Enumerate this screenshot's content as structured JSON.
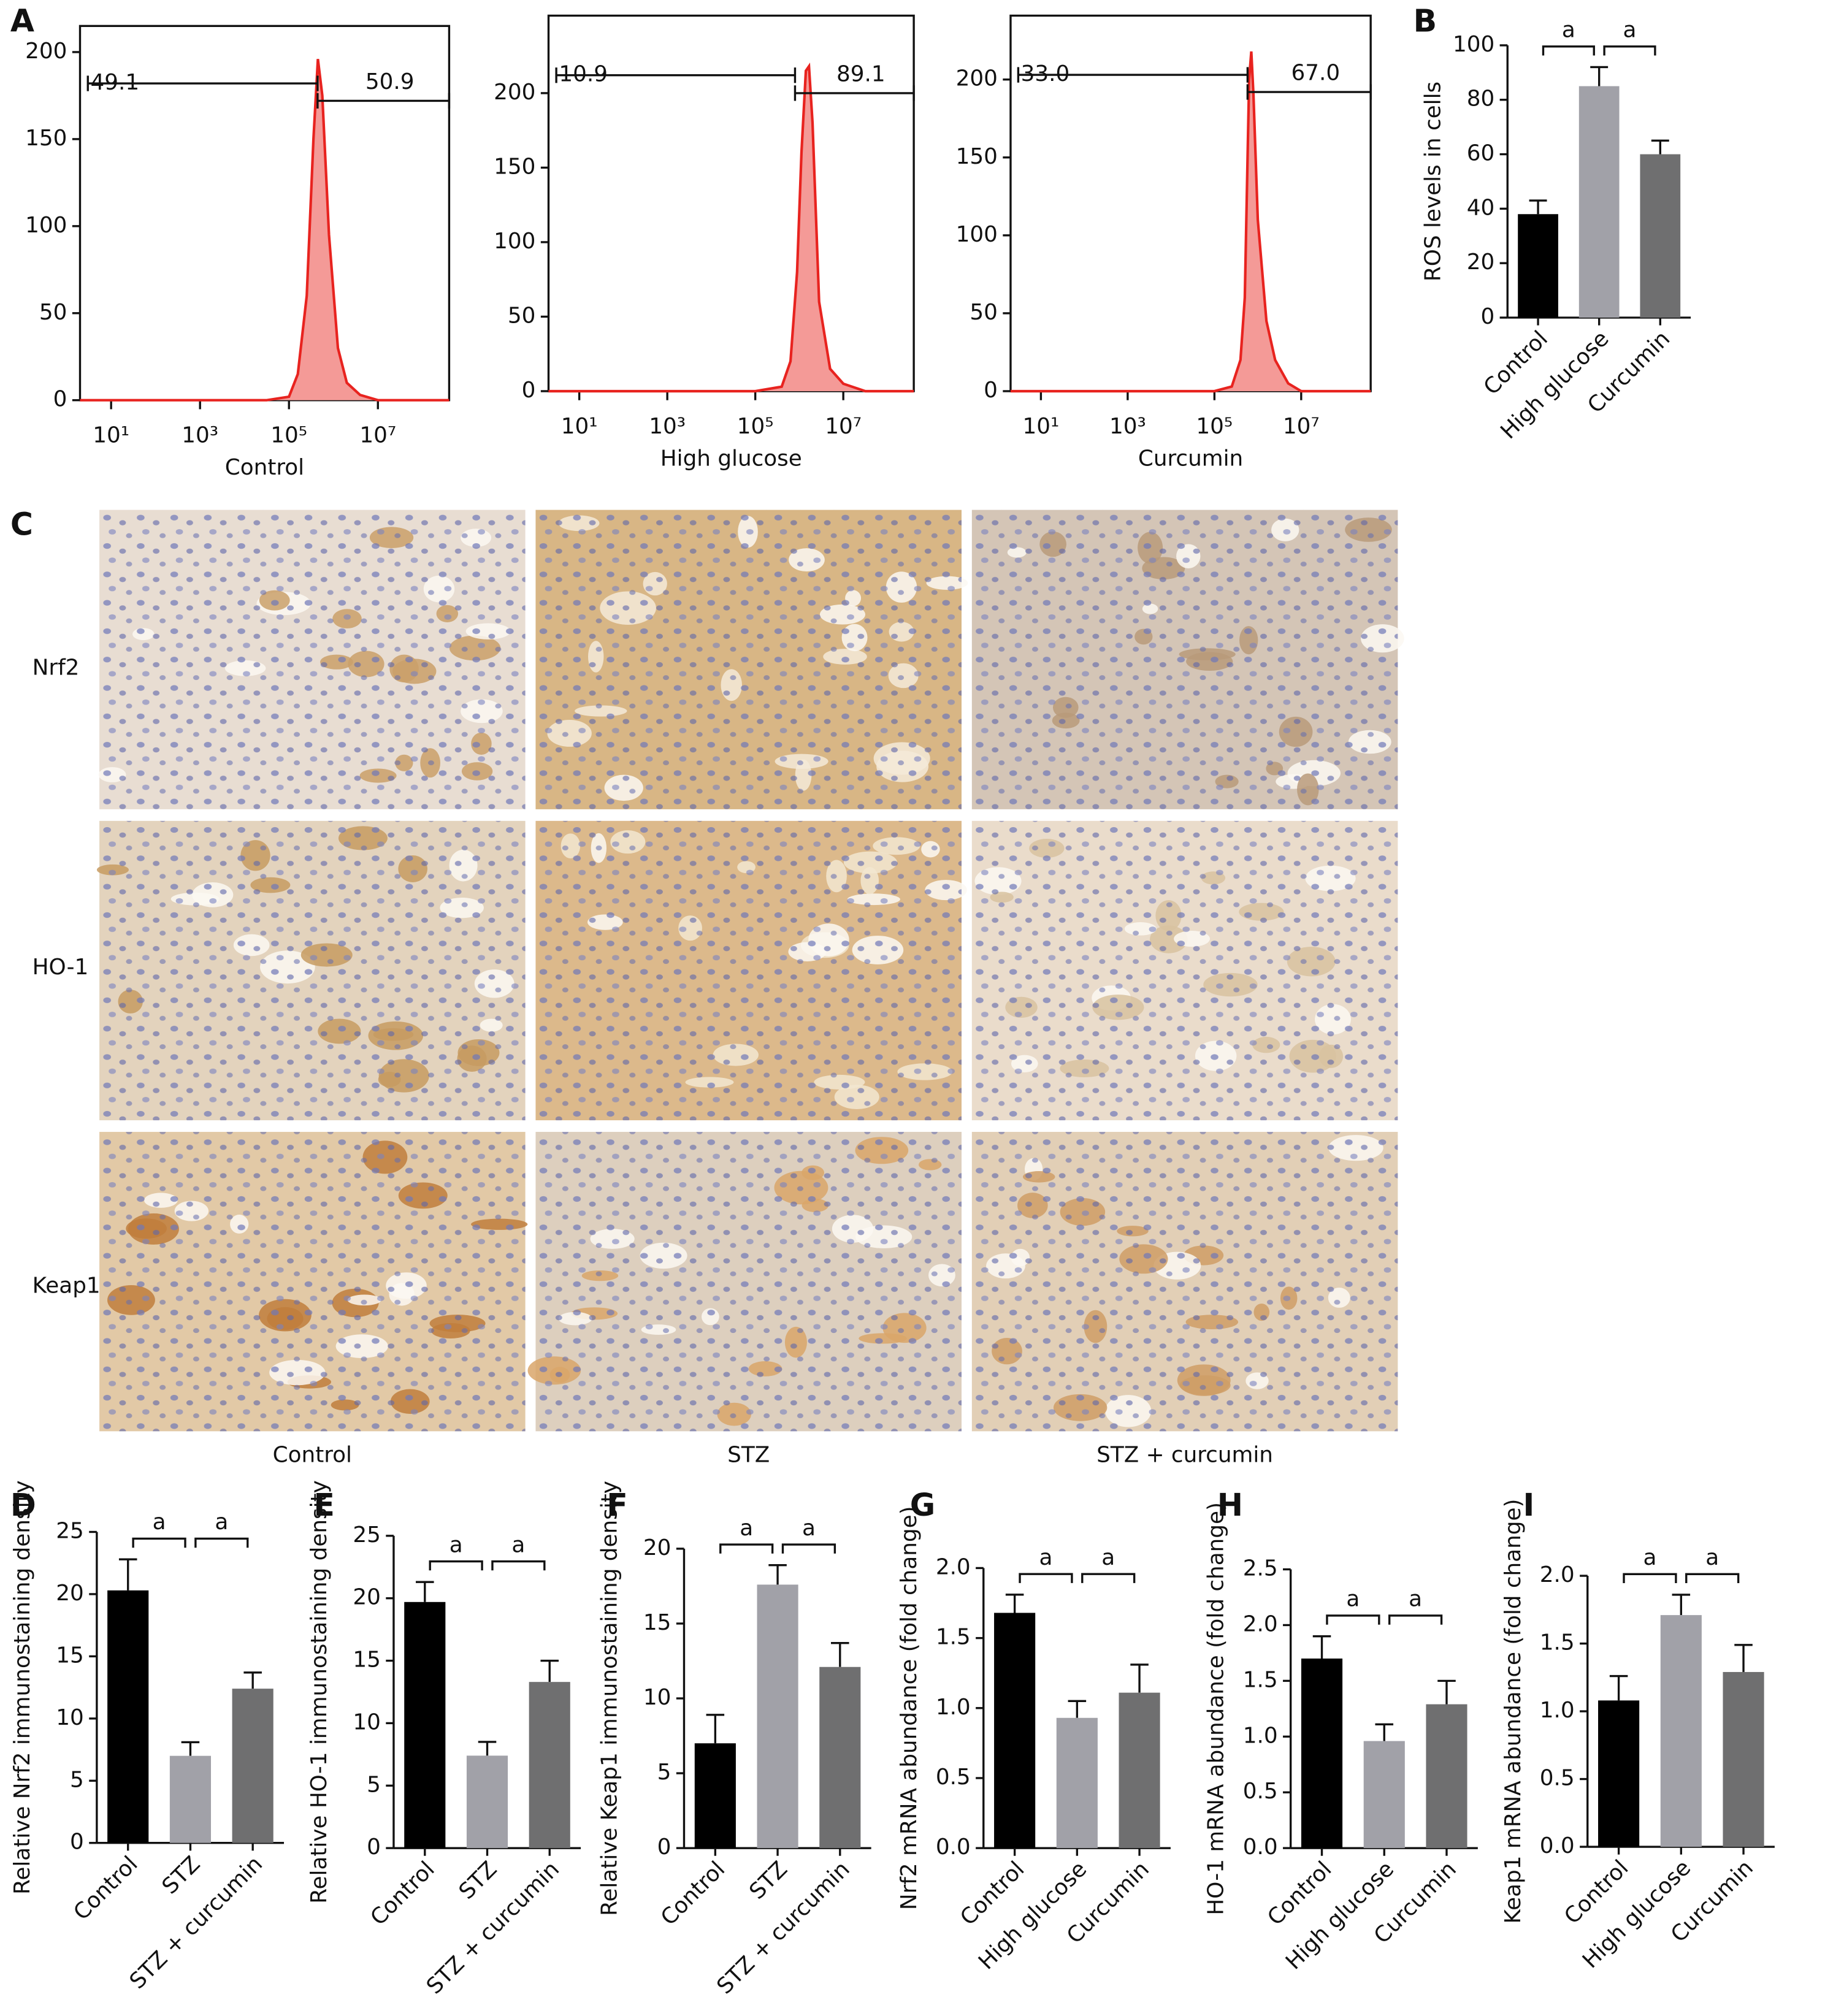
{
  "panel_labels": [
    "A",
    "B",
    "C",
    "D",
    "E",
    "F",
    "G",
    "H",
    "I"
  ],
  "panel_c": {
    "row_labels": [
      "Nrf2",
      "HO-1",
      "Keap1"
    ],
    "column_labels": [
      "Control",
      "STZ",
      "STZ + curcumin"
    ]
  },
  "chart_data": [
    {
      "type": "area",
      "xlabel": "Control",
      "log_x": true,
      "xlim": [
        2,
        400000000.0
      ],
      "ylim": [
        0,
        215
      ],
      "xticks": [
        {
          "value": 10,
          "label": "10¹"
        },
        {
          "value": 1000,
          "label": "10³"
        },
        {
          "value": 100000,
          "label": "10⁵"
        },
        {
          "value": 10000000,
          "label": "10⁷"
        }
      ],
      "yticks": [
        0,
        50,
        100,
        150,
        200
      ],
      "color": "#e8231f",
      "fill": "#f49a97",
      "x": [
        2,
        31600.0,
        100000.0,
        158000.0,
        251000.0,
        355000.0,
        447000.0,
        562000.0,
        794000.0,
        1260000.0,
        2000000.0,
        3980000.0,
        10000000.0,
        100000000.0,
        400000000.0
      ],
      "values": [
        0,
        0,
        2,
        15,
        60,
        150,
        196,
        175,
        95,
        30,
        10,
        3,
        0,
        0,
        0
      ],
      "gates": [
        {
          "value": 49.1,
          "x": [
            3,
            440000.0
          ],
          "y": 182
        },
        {
          "value": 50.9,
          "x": [
            440000.0,
            400000000.0
          ],
          "y": 172
        }
      ]
    },
    {
      "type": "area",
      "xlabel": "High glucose",
      "log_x": true,
      "xlim": [
        2,
        400000000.0
      ],
      "ylim": [
        0,
        252
      ],
      "xticks": [
        {
          "value": 10,
          "label": "10¹"
        },
        {
          "value": 1000,
          "label": "10³"
        },
        {
          "value": 100000,
          "label": "10⁵"
        },
        {
          "value": 10000000,
          "label": "10⁷"
        }
      ],
      "yticks": [
        0,
        50,
        100,
        150,
        200
      ],
      "color": "#e8231f",
      "fill": "#f49a97",
      "x": [
        2,
        100000.0,
        398000.0,
        631000.0,
        891000.0,
        1120000.0,
        1410000.0,
        1660000.0,
        2000000.0,
        2820000.0,
        5010000.0,
        10000000.0,
        31600000.0,
        400000000.0
      ],
      "values": [
        0,
        0,
        3,
        20,
        80,
        160,
        215,
        218,
        180,
        60,
        15,
        5,
        0,
        0
      ],
      "gates": [
        {
          "value": 10.9,
          "x": [
            3,
            800000.0
          ],
          "y": 212
        },
        {
          "value": 89.1,
          "x": [
            800000.0,
            400000000.0
          ],
          "y": 200
        }
      ]
    },
    {
      "type": "area",
      "xlabel": "Curcumin",
      "log_x": true,
      "xlim": [
        2,
        400000000.0
      ],
      "ylim": [
        0,
        241
      ],
      "xticks": [
        {
          "value": 10,
          "label": "10¹"
        },
        {
          "value": 1000,
          "label": "10³"
        },
        {
          "value": 100000,
          "label": "10⁵"
        },
        {
          "value": 10000000,
          "label": "10⁷"
        }
      ],
      "yticks": [
        0,
        50,
        100,
        150,
        200
      ],
      "color": "#e8231f",
      "fill": "#f49a97",
      "x": [
        2,
        100000.0,
        251000.0,
        398000.0,
        501000.0,
        562000.0,
        631000.0,
        708000.0,
        794000.0,
        1000000.0,
        1580000.0,
        2510000.0,
        5010000.0,
        10000000.0,
        400000000.0
      ],
      "values": [
        0,
        0,
        3,
        20,
        60,
        130,
        200,
        218,
        190,
        110,
        45,
        20,
        5,
        0,
        0
      ],
      "gates": [
        {
          "value": 33,
          "label": "33.0",
          "x": [
            3,
            580000.0
          ],
          "y": 203
        },
        {
          "value": 67,
          "label": "67.0",
          "x": [
            580000.0,
            400000000.0
          ],
          "y": 192
        }
      ]
    },
    {
      "type": "bar",
      "categories": [
        "Control",
        "High glucose",
        "Curcumin"
      ],
      "values": [
        38,
        85,
        60
      ],
      "errors": [
        5,
        7,
        5
      ],
      "colors": [
        "#000000",
        "#a1a1a8",
        "#6f6f70"
      ],
      "ylabel": "ROS levels in cells",
      "ylim": [
        0,
        100
      ],
      "yticks": [
        0,
        20,
        40,
        60,
        80,
        100
      ],
      "significance": [
        {
          "label": "a",
          "pair": [
            0,
            1
          ]
        },
        {
          "label": "a",
          "pair": [
            1,
            2
          ]
        }
      ]
    },
    {
      "type": "bar",
      "categories": [
        "Control",
        "STZ",
        "STZ + curcumin"
      ],
      "values": [
        20.3,
        7,
        12.4
      ],
      "errors": [
        2.5,
        1.1,
        1.3
      ],
      "colors": [
        "#000000",
        "#a1a1a8",
        "#6f6f70"
      ],
      "ylabel": "Relative Nrf2 immunostaining density",
      "ylim": [
        0,
        25
      ],
      "yticks": [
        0,
        5,
        10,
        15,
        20,
        25
      ],
      "significance": [
        {
          "label": "a",
          "pair": [
            0,
            1
          ]
        },
        {
          "label": "a",
          "pair": [
            1,
            2
          ]
        }
      ]
    },
    {
      "type": "bar",
      "categories": [
        "Control",
        "STZ",
        "STZ + curcumin"
      ],
      "values": [
        19.7,
        7.4,
        13.3
      ],
      "errors": [
        1.6,
        1.1,
        1.7
      ],
      "colors": [
        "#000000",
        "#a1a1a8",
        "#6f6f70"
      ],
      "ylabel": "Relative HO-1 immunostaining density",
      "ylim": [
        0,
        25
      ],
      "yticks": [
        0,
        5,
        10,
        15,
        20,
        25
      ],
      "significance": [
        {
          "label": "a",
          "pair": [
            0,
            1
          ]
        },
        {
          "label": "a",
          "pair": [
            1,
            2
          ]
        }
      ]
    },
    {
      "type": "bar",
      "categories": [
        "Control",
        "STZ",
        "STZ + curcumin"
      ],
      "values": [
        7,
        17.6,
        12.1
      ],
      "errors": [
        1.9,
        1.3,
        1.6
      ],
      "colors": [
        "#000000",
        "#a1a1a8",
        "#6f6f70"
      ],
      "ylabel": "Relative Keap1 immunostaining density",
      "ylim": [
        0,
        20
      ],
      "yticks": [
        0,
        5,
        10,
        15,
        20
      ],
      "significance": [
        {
          "label": "a",
          "pair": [
            0,
            1
          ]
        },
        {
          "label": "a",
          "pair": [
            1,
            2
          ]
        }
      ]
    },
    {
      "type": "bar",
      "categories": [
        "Control",
        "High glucose",
        "Curcumin"
      ],
      "values": [
        1.68,
        0.93,
        1.11
      ],
      "errors": [
        0.13,
        0.12,
        0.2
      ],
      "colors": [
        "#000000",
        "#a1a1a8",
        "#6f6f70"
      ],
      "ylabel": "Nrf2 mRNA abundance (fold change)",
      "ylim": [
        0,
        2
      ],
      "yticks": [
        {
          "value": 0,
          "label": "0.0"
        },
        0.5,
        {
          "value": 1,
          "label": "1.0"
        },
        1.5,
        {
          "value": 2,
          "label": "2.0"
        }
      ],
      "significance": [
        {
          "label": "a",
          "pair": [
            0,
            1
          ]
        },
        {
          "label": "a",
          "pair": [
            1,
            2
          ]
        }
      ]
    },
    {
      "type": "bar",
      "categories": [
        "Control",
        "High glucose",
        "Curcumin"
      ],
      "values": [
        1.7,
        0.96,
        1.29
      ],
      "errors": [
        0.2,
        0.15,
        0.21
      ],
      "colors": [
        "#000000",
        "#a1a1a8",
        "#6f6f70"
      ],
      "ylabel": "HO-1 mRNA abundance (fold change)",
      "ylim": [
        0,
        2.5
      ],
      "yticks": [
        {
          "value": 0,
          "label": "0.0"
        },
        0.5,
        {
          "value": 1,
          "label": "1.0"
        },
        1.5,
        {
          "value": 2,
          "label": "2.0"
        },
        2.5
      ],
      "significance": [
        {
          "label": "a",
          "pair": [
            0,
            1
          ]
        },
        {
          "label": "a",
          "pair": [
            1,
            2
          ]
        }
      ]
    },
    {
      "type": "bar",
      "categories": [
        "Control",
        "High glucose",
        "Curcumin"
      ],
      "values": [
        1.08,
        1.71,
        1.29
      ],
      "errors": [
        0.18,
        0.15,
        0.2
      ],
      "colors": [
        "#000000",
        "#a1a1a8",
        "#6f6f70"
      ],
      "ylabel": "Keap1 mRNA abundance (fold change)",
      "ylim": [
        0,
        2
      ],
      "yticks": [
        {
          "value": 0,
          "label": "0.0"
        },
        0.5,
        {
          "value": 1,
          "label": "1.0"
        },
        1.5,
        {
          "value": 2,
          "label": "2.0"
        }
      ],
      "significance": [
        {
          "label": "a",
          "pair": [
            0,
            1
          ]
        },
        {
          "label": "a",
          "pair": [
            1,
            2
          ]
        }
      ]
    }
  ]
}
